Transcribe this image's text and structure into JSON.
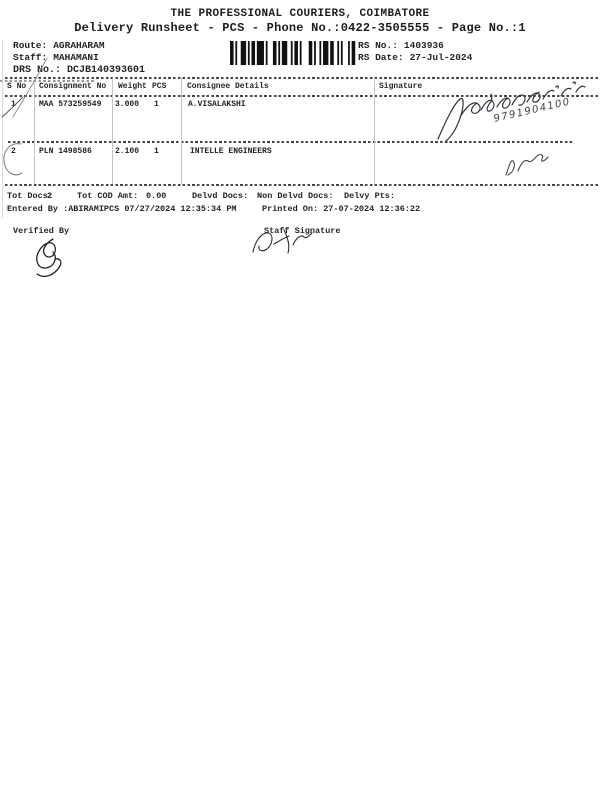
{
  "document": {
    "title": "THE PROFESSIONAL COURIERS, COIMBATORE",
    "subtitle": "Delivery Runsheet - PCS - Phone No.:0422-3505555 - Page No.:1",
    "info": {
      "route_label": "Route:",
      "route": "AGRAHARAM",
      "staff_label": "Staff:",
      "staff": "MAHAMANI",
      "drs_label": "DRS No.:",
      "drs": "DCJB140393601",
      "rs_no_label": "RS No.:",
      "rs_no": "1403936",
      "rs_date_label": "RS Date:",
      "rs_date": "27-Jul-2024"
    },
    "barcode_icon": "barcode",
    "table": {
      "headers": {
        "s_no": "S No",
        "consignment": "Consignment No",
        "weight": "Weight",
        "pcs": "PCS",
        "consignee": "Consignee Details",
        "signature": "Signature"
      },
      "rows": [
        {
          "s_no": "1",
          "consignment": "MAA 573259549",
          "weight": "3.000",
          "pcs": "1",
          "consignee": "A.VISALAKSHI",
          "signature_phone": "9791904100"
        },
        {
          "s_no": "2",
          "consignment": "PLN 1498586",
          "weight": "2.100",
          "pcs": "1",
          "consignee": "INTELLE ENGINEERS"
        }
      ]
    },
    "summary": {
      "tot_docs_label": "Tot Docs:",
      "tot_docs": "2",
      "tot_cod_label": "Tot COD Amt:",
      "tot_cod": "0.00",
      "delvd_docs_label": "Delvd Docs:",
      "non_delvd_docs_label": "Non Delvd Docs:",
      "delvy_pts_label": "Delvy Pts:",
      "entered_by": "Entered By :ABIRAMIPCS 07/27/2024 12:35:34 PM",
      "printed_on": "Printed On: 27-07-2024 12:36:22"
    },
    "signoff": {
      "verified_by_label": "Verified By",
      "staff_signature_label": "Staff Signature"
    }
  }
}
